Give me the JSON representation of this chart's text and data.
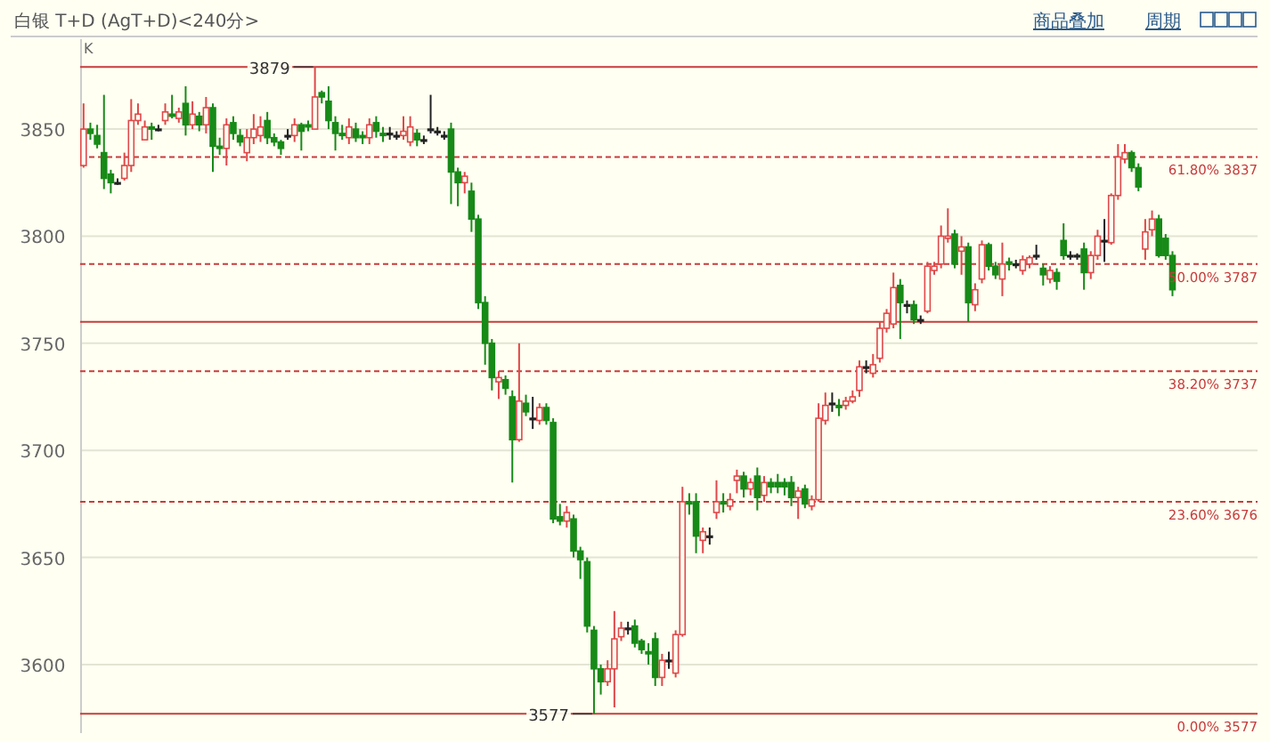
{
  "chart_data": {
    "type": "candlestick",
    "title": "白银 T+D (AgT+D)<240分>",
    "annotations": [
      "商品叠加",
      "周期",
      "K",
      {
        "text": "3879",
        "y": 3879
      },
      {
        "text": "3577",
        "y": 3577
      }
    ],
    "categories": [
      null,
      null,
      null,
      null,
      null,
      null,
      null,
      null,
      null,
      null,
      null,
      null,
      null,
      null,
      null,
      null,
      null,
      null,
      null,
      null,
      null,
      null,
      null,
      null,
      null,
      null,
      null,
      null,
      null,
      null,
      null,
      null,
      null,
      null,
      null,
      null,
      null,
      null,
      null,
      null,
      null,
      null,
      null,
      null,
      null,
      null,
      null,
      null,
      null,
      null,
      null,
      null,
      null,
      null,
      null,
      null,
      null,
      null,
      null,
      null,
      null,
      null,
      null,
      null,
      null,
      null,
      null,
      null,
      null,
      null,
      null,
      null,
      null,
      null,
      null,
      null,
      null,
      null,
      null,
      null,
      null,
      null,
      null,
      null,
      null,
      null,
      null,
      null,
      null,
      null,
      null,
      null,
      null,
      null,
      null,
      null,
      null,
      null,
      null,
      null,
      null,
      null,
      null,
      null,
      null,
      null,
      null,
      null,
      null,
      null,
      null,
      null,
      null,
      null,
      null,
      null,
      null,
      null,
      null,
      null,
      null,
      null,
      null,
      null,
      null,
      null,
      null,
      null,
      null,
      null,
      null,
      null,
      null,
      null,
      null,
      null,
      null,
      null,
      null,
      null,
      null,
      null,
      null,
      null,
      null,
      null,
      null,
      null,
      null,
      null,
      null,
      null,
      null,
      null,
      null,
      null,
      null,
      null,
      null,
      null,
      null,
      null,
      null,
      null,
      null,
      null,
      null,
      null,
      null,
      null,
      null,
      null,
      null
    ],
    "ohlc": [
      [
        3833,
        3862,
        3832,
        3850
      ],
      [
        3850,
        3853,
        3845,
        3848
      ],
      [
        3847,
        3852,
        3841,
        3843
      ],
      [
        3839,
        3866,
        3822,
        3827
      ],
      [
        3829,
        3831,
        3820,
        3825
      ],
      [
        3825,
        3827,
        3824,
        3825
      ],
      [
        3827,
        3839,
        3826,
        3833
      ],
      [
        3833,
        3864,
        3830,
        3854
      ],
      [
        3854,
        3862,
        3852,
        3857
      ],
      [
        3845,
        3854,
        3845,
        3851
      ],
      [
        3851,
        3853,
        3845,
        3850
      ],
      [
        3850,
        3852,
        3849,
        3850
      ],
      [
        3854,
        3862,
        3852,
        3858
      ],
      [
        3857,
        3866,
        3855,
        3856
      ],
      [
        3855,
        3860,
        3853,
        3858
      ],
      [
        3862,
        3870,
        3847,
        3852
      ],
      [
        3852,
        3863,
        3850,
        3857
      ],
      [
        3856,
        3858,
        3849,
        3852
      ],
      [
        3852,
        3865,
        3848,
        3860
      ],
      [
        3860,
        3862,
        3830,
        3842
      ],
      [
        3842,
        3846,
        3838,
        3841
      ],
      [
        3841,
        3855,
        3833,
        3852
      ],
      [
        3853,
        3856,
        3845,
        3848
      ],
      [
        3847,
        3850,
        3842,
        3844
      ],
      [
        3839,
        3850,
        3835,
        3846
      ],
      [
        3846,
        3857,
        3843,
        3850
      ],
      [
        3847,
        3856,
        3844,
        3851
      ],
      [
        3854,
        3858,
        3843,
        3846
      ],
      [
        3846,
        3848,
        3842,
        3844
      ],
      [
        3844,
        3845,
        3838,
        3841
      ],
      [
        3847,
        3850,
        3845,
        3847
      ],
      [
        3847,
        3855,
        3844,
        3852
      ],
      [
        3852,
        3853,
        3840,
        3849
      ],
      [
        3852,
        3854,
        3849,
        3851
      ],
      [
        3850,
        3879,
        3850,
        3865
      ],
      [
        3867,
        3868,
        3862,
        3865
      ],
      [
        3863,
        3870,
        3850,
        3854
      ],
      [
        3853,
        3856,
        3840,
        3848
      ],
      [
        3848,
        3852,
        3845,
        3847
      ],
      [
        3846,
        3855,
        3843,
        3851
      ],
      [
        3850,
        3853,
        3844,
        3846
      ],
      [
        3847,
        3849,
        3843,
        3846
      ],
      [
        3846,
        3855,
        3843,
        3852
      ],
      [
        3853,
        3856,
        3846,
        3849
      ],
      [
        3848,
        3851,
        3844,
        3847
      ],
      [
        3848,
        3851,
        3845,
        3848
      ],
      [
        3847,
        3849,
        3845,
        3847
      ],
      [
        3847,
        3856,
        3845,
        3849
      ],
      [
        3844,
        3856,
        3842,
        3851
      ],
      [
        3848,
        3850,
        3842,
        3845
      ],
      [
        3845,
        3847,
        3843,
        3845
      ],
      [
        3850,
        3866,
        3848,
        3850
      ],
      [
        3849,
        3851,
        3847,
        3849
      ],
      [
        3847,
        3849,
        3845,
        3847
      ],
      [
        3850,
        3853,
        3815,
        3830
      ],
      [
        3830,
        3832,
        3814,
        3825
      ],
      [
        3825,
        3830,
        3820,
        3828
      ],
      [
        3821,
        3825,
        3802,
        3808
      ],
      [
        3808,
        3810,
        3766,
        3769
      ],
      [
        3769,
        3772,
        3740,
        3750
      ],
      [
        3750,
        3752,
        3728,
        3734
      ],
      [
        3732,
        3737,
        3724,
        3734
      ],
      [
        3733,
        3735,
        3726,
        3729
      ],
      [
        3725,
        3728,
        3685,
        3705
      ],
      [
        3705,
        3750,
        3704,
        3723
      ],
      [
        3722,
        3726,
        3716,
        3718
      ],
      [
        3715,
        3725,
        3710,
        3715
      ],
      [
        3714,
        3722,
        3712,
        3720
      ],
      [
        3720,
        3722,
        3712,
        3714
      ],
      [
        3713,
        3715,
        3666,
        3668
      ],
      [
        3669,
        3675,
        3665,
        3667
      ],
      [
        3667,
        3674,
        3664,
        3671
      ],
      [
        3668,
        3670,
        3650,
        3653
      ],
      [
        3653,
        3655,
        3640,
        3649
      ],
      [
        3648,
        3650,
        3615,
        3618
      ],
      [
        3616,
        3618,
        3577,
        3598
      ],
      [
        3598,
        3600,
        3586,
        3592
      ],
      [
        3592,
        3602,
        3590,
        3598
      ],
      [
        3598,
        3625,
        3580,
        3612
      ],
      [
        3613,
        3620,
        3611,
        3617
      ],
      [
        3617,
        3620,
        3614,
        3617
      ],
      [
        3618,
        3621,
        3608,
        3610
      ],
      [
        3611,
        3612,
        3605,
        3607
      ],
      [
        3606,
        3610,
        3600,
        3605
      ],
      [
        3612,
        3615,
        3590,
        3594
      ],
      [
        3594,
        3605,
        3590,
        3602
      ],
      [
        3602,
        3606,
        3598,
        3602
      ],
      [
        3596,
        3616,
        3594,
        3614
      ],
      [
        3614,
        3683,
        3613,
        3676
      ],
      [
        3676,
        3680,
        3670,
        3675
      ],
      [
        3676,
        3680,
        3652,
        3660
      ],
      [
        3658,
        3664,
        3652,
        3662
      ],
      [
        3660,
        3664,
        3656,
        3660
      ],
      [
        3671,
        3686,
        3668,
        3676
      ],
      [
        3676,
        3680,
        3671,
        3675
      ],
      [
        3674,
        3680,
        3672,
        3677
      ],
      [
        3686,
        3691,
        3680,
        3688
      ],
      [
        3688,
        3690,
        3678,
        3682
      ],
      [
        3682,
        3687,
        3679,
        3685
      ],
      [
        3688,
        3692,
        3672,
        3678
      ],
      [
        3679,
        3688,
        3676,
        3685
      ],
      [
        3685,
        3687,
        3680,
        3683
      ],
      [
        3685,
        3689,
        3680,
        3683
      ],
      [
        3685,
        3687,
        3679,
        3683
      ],
      [
        3685,
        3688,
        3674,
        3678
      ],
      [
        3678,
        3683,
        3668,
        3681
      ],
      [
        3682,
        3684,
        3673,
        3675
      ],
      [
        3674,
        3679,
        3672,
        3677
      ],
      [
        3677,
        3722,
        3676,
        3715
      ],
      [
        3714,
        3727,
        3712,
        3721
      ],
      [
        3722,
        3727,
        3718,
        3722
      ],
      [
        3721,
        3724,
        3716,
        3720
      ],
      [
        3721,
        3725,
        3719,
        3723
      ],
      [
        3723,
        3728,
        3722,
        3725
      ],
      [
        3728,
        3742,
        3725,
        3739
      ],
      [
        3739,
        3742,
        3736,
        3739
      ],
      [
        3736,
        3745,
        3734,
        3740
      ],
      [
        3743,
        3760,
        3741,
        3757
      ],
      [
        3757,
        3766,
        3755,
        3764
      ],
      [
        3759,
        3783,
        3757,
        3776
      ],
      [
        3777,
        3780,
        3752,
        3769
      ],
      [
        3768,
        3770,
        3764,
        3768
      ],
      [
        3768,
        3770,
        3759,
        3761
      ],
      [
        3761,
        3763,
        3759,
        3761
      ],
      [
        3765,
        3788,
        3764,
        3786
      ],
      [
        3784,
        3788,
        3782,
        3786
      ],
      [
        3787,
        3805,
        3785,
        3800
      ],
      [
        3799,
        3813,
        3797,
        3800
      ],
      [
        3801,
        3803,
        3785,
        3787
      ],
      [
        3793,
        3800,
        3782,
        3795
      ],
      [
        3795,
        3797,
        3760,
        3769
      ],
      [
        3768,
        3778,
        3765,
        3775
      ],
      [
        3780,
        3798,
        3778,
        3796
      ],
      [
        3796,
        3797,
        3784,
        3786
      ],
      [
        3786,
        3788,
        3780,
        3782
      ],
      [
        3780,
        3797,
        3772,
        3787
      ],
      [
        3788,
        3790,
        3784,
        3787
      ],
      [
        3787,
        3789,
        3785,
        3787
      ],
      [
        3784,
        3791,
        3782,
        3789
      ],
      [
        3787,
        3791,
        3785,
        3790
      ],
      [
        3791,
        3796,
        3789,
        3791
      ],
      [
        3785,
        3787,
        3777,
        3782
      ],
      [
        3780,
        3786,
        3778,
        3784
      ],
      [
        3783,
        3785,
        3775,
        3779
      ],
      [
        3798,
        3806,
        3789,
        3791
      ],
      [
        3791,
        3793,
        3789,
        3791
      ],
      [
        3791,
        3792,
        3789,
        3791
      ],
      [
        3794,
        3797,
        3775,
        3783
      ],
      [
        3783,
        3793,
        3780,
        3791
      ],
      [
        3791,
        3803,
        3789,
        3800
      ],
      [
        3798,
        3808,
        3788,
        3798
      ],
      [
        3797,
        3820,
        3796,
        3819
      ],
      [
        3819,
        3843,
        3817,
        3837
      ],
      [
        3836,
        3843,
        3834,
        3839
      ],
      [
        3839,
        3840,
        3830,
        3832
      ],
      [
        3832,
        3834,
        3821,
        3823
      ],
      [
        3794,
        3808,
        3789,
        3802
      ],
      [
        3803,
        3812,
        3800,
        3808
      ],
      [
        3808,
        3810,
        3790,
        3791
      ],
      [
        3799,
        3801,
        3789,
        3791
      ],
      [
        3791,
        3793,
        3772,
        3775
      ],
      null,
      null,
      null,
      null,
      null,
      null,
      null,
      null,
      null,
      null,
      null,
      null
    ],
    "colors": [
      "#e04848",
      "#178a17",
      "#178a17",
      "#178a17",
      "#178a17",
      "#222222",
      "#e04848",
      "#e04848",
      "#e04848",
      "#e04848",
      "#178a17",
      "#222222",
      "#e04848",
      "#178a17",
      "#e04848",
      "#178a17",
      "#e04848",
      "#178a17",
      "#e04848",
      "#178a17",
      "#178a17",
      "#e04848",
      "#178a17",
      "#178a17",
      "#e04848",
      "#e04848",
      "#e04848",
      "#178a17",
      "#178a17",
      "#178a17",
      "#222222",
      "#e04848",
      "#178a17",
      "#178a17",
      "#e04848",
      "#178a17",
      "#178a17",
      "#178a17",
      "#178a17",
      "#e04848",
      "#178a17",
      "#178a17",
      "#e04848",
      "#178a17",
      "#178a17",
      "#222222",
      "#222222",
      "#e04848",
      "#e04848",
      "#178a17",
      "#222222",
      "#222222",
      "#222222",
      "#222222",
      "#178a17",
      "#178a17",
      "#e04848",
      "#178a17",
      "#178a17",
      "#178a17",
      "#178a17",
      "#e04848",
      "#178a17",
      "#178a17",
      "#e04848",
      "#178a17",
      "#222222",
      "#e04848",
      "#178a17",
      "#178a17",
      "#178a17",
      "#e04848",
      "#178a17",
      "#178a17",
      "#178a17",
      "#178a17",
      "#178a17",
      "#e04848",
      "#e04848",
      "#e04848",
      "#222222",
      "#178a17",
      "#178a17",
      "#178a17",
      "#178a17",
      "#e04848",
      "#222222",
      "#e04848",
      "#e04848",
      "#178a17",
      "#178a17",
      "#e04848",
      "#222222",
      "#e04848",
      "#178a17",
      "#e04848",
      "#e04848",
      "#178a17",
      "#e04848",
      "#178a17",
      "#e04848",
      "#178a17",
      "#178a17",
      "#178a17",
      "#178a17",
      "#e04848",
      "#178a17",
      "#e04848",
      "#e04848",
      "#e04848",
      "#222222",
      "#178a17",
      "#e04848",
      "#e04848",
      "#e04848",
      "#222222",
      "#e04848",
      "#e04848",
      "#e04848",
      "#e04848",
      "#178a17",
      "#222222",
      "#178a17",
      "#222222",
      "#e04848",
      "#e04848",
      "#e04848",
      "#e04848",
      "#178a17",
      "#e04848",
      "#178a17",
      "#e04848",
      "#e04848",
      "#178a17",
      "#178a17",
      "#e04848",
      "#178a17",
      "#222222",
      "#e04848",
      "#e04848",
      "#222222",
      "#178a17",
      "#e04848",
      "#178a17",
      "#178a17",
      "#222222",
      "#222222",
      "#178a17",
      "#e04848",
      "#e04848",
      "#222222",
      "#e04848",
      "#e04848",
      "#e04848",
      "#178a17",
      "#178a17",
      "#e04848",
      "#e04848",
      "#178a17",
      "#178a17",
      "#178a17",
      null,
      null,
      null,
      null,
      null,
      null,
      null,
      null,
      null,
      null,
      null,
      null
    ],
    "ylim": [
      3568,
      3892
    ],
    "yticks": [
      3600,
      3650,
      3700,
      3750,
      3800,
      3850
    ],
    "grid": "y",
    "tick_labels": "y",
    "ref_lines": [
      {
        "axis": "y",
        "value": 3879,
        "label": null,
        "color": "#c83c3c",
        "line_style": "solid"
      },
      {
        "axis": "y",
        "value": 3837,
        "label": "61.80% 3837",
        "color": "#c83c3c",
        "line_style": "dashed"
      },
      {
        "axis": "y",
        "value": 3787,
        "label": "50.00% 3787",
        "color": "#c83c3c",
        "line_style": "dashed"
      },
      {
        "axis": "y",
        "value": 3760,
        "label": null,
        "color": "#c83c3c",
        "line_style": "solid"
      },
      {
        "axis": "y",
        "value": 3737,
        "label": "38.20% 3737",
        "color": "#c83c3c",
        "line_style": "dashed"
      },
      {
        "axis": "y",
        "value": 3676,
        "label": "23.60% 3676",
        "color": "#c83c3c",
        "line_style": "dashed"
      },
      {
        "axis": "y",
        "value": 3577,
        "label": "0.00% 3577",
        "color": "#c83c3c",
        "line_style": "solid"
      }
    ]
  }
}
